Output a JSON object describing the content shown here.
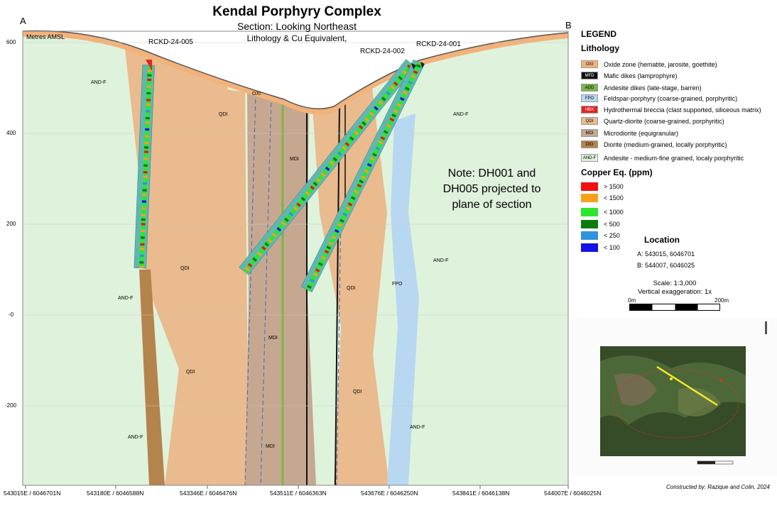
{
  "header": {
    "title": "Kendal Porphyry Complex",
    "subtitle": "Section: Looking Northeast",
    "subtitle2": "Lithology & Cu Equivalent,"
  },
  "section": {
    "end_a": "A",
    "end_b": "B",
    "datum_label": "Metres AMSL",
    "y_ticks": [
      "600",
      "400",
      "200",
      "-0",
      "-200"
    ],
    "x_ticks": [
      "543015E / 6046701N",
      "543180E / 6046588N",
      "543346E / 6046476N",
      "543511E / 6046363N",
      "543676E / 6046250N",
      "543841E / 6046138N",
      "544007E / 6046025N"
    ],
    "drillholes": [
      "RCKD-24-005",
      "RCKD-24-002",
      "RCKD-24-001"
    ],
    "rock_labels": {
      "and_f": "AND-F",
      "qdi": "QDI",
      "mdi": "MDI",
      "fpo": "FPO",
      "oxi": "OXI"
    },
    "note": "Note: DH001 and DH005 projected to plane of section"
  },
  "legend": {
    "heading": "LEGEND",
    "lithology_heading": "Lithology",
    "lithology": [
      {
        "code": "OXI",
        "label": "Oxide zone (hematite, jarosite, goethite)",
        "color": "#f3b27a"
      },
      {
        "code": "MFD",
        "label": "Mafic dikes (lamprophyre)",
        "color": "#111111"
      },
      {
        "code": "ADD",
        "label": "Andesite dikes (late-stage, barren)",
        "color": "#7ab648"
      },
      {
        "code": "FPO",
        "label": "Feldspar-porphyry (coarse-grained, porphyritic)",
        "color": "#b8d8f2"
      },
      {
        "code": "HBX",
        "label": "Hydrothermal breccia (clast supported, siliceous matrix)",
        "color": "#e52424"
      },
      {
        "code": "QDI",
        "label": "Quartz-diorite (coarse-grained, porphyritic)",
        "color": "#e9bb8e"
      },
      {
        "code": "MDI",
        "label": "Microdiorite (equigranular)",
        "color": "#c6a78f"
      },
      {
        "code": "DIO",
        "label": "Diorite (medium-grained, locally porphyritic)",
        "color": "#b5834c"
      },
      {
        "code": "AND-F",
        "label": "Andesite - medium-fine grained, localy porphyritic",
        "color": "#dff2dc"
      }
    ],
    "copper_heading": "Copper Eq. (ppm)",
    "copper": [
      {
        "label": "> 1500",
        "color": "#ee1111"
      },
      {
        "label": "< 1500",
        "color": "#f5a21a"
      },
      {
        "label": "< 1000",
        "color": "#2ee52e"
      },
      {
        "label": "< 500",
        "color": "#0b7c0b"
      },
      {
        "label": "< 250",
        "color": "#2f93e0"
      },
      {
        "label": "< 100",
        "color": "#1212e6"
      }
    ]
  },
  "location": {
    "heading": "Location",
    "a": "A: 543015, 6046701",
    "b": "B: 544007, 6046025"
  },
  "scale": {
    "ratio": "Scale: 1:3,000",
    "vertical": "Vertical exaggeration: 1x",
    "start": "0m",
    "end": "200m"
  },
  "credit": "Constructed by: Razique and Colin, 2024"
}
